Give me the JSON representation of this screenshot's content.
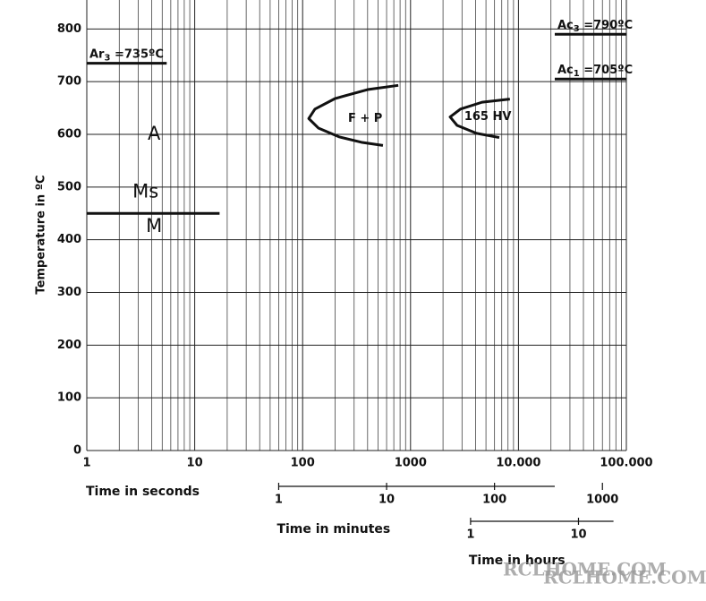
{
  "chart_data": {
    "type": "line",
    "y_label": "Temperature in ºC",
    "xscale": "log",
    "xlim": [
      1,
      100000
    ],
    "ylim": [
      0,
      855
    ],
    "xticks": [
      1,
      10,
      100,
      1000,
      {
        "value": 10000,
        "label": "10.000"
      },
      {
        "value": 100000,
        "label": "100.000"
      }
    ],
    "x_minor_ticks": [
      2,
      3,
      4,
      5,
      6,
      7,
      8,
      9,
      20,
      30,
      40,
      50,
      60,
      70,
      80,
      90,
      200,
      300,
      400,
      500,
      600,
      700,
      800,
      900,
      2000,
      3000,
      4000,
      5000,
      6000,
      7000,
      8000,
      9000,
      20000,
      30000,
      40000,
      50000,
      60000,
      70000,
      80000,
      90000
    ],
    "yticks": [
      0,
      100,
      200,
      300,
      400,
      500,
      600,
      700,
      800
    ],
    "grid": true,
    "x_title": "Time in seconds",
    "secondary_axes": [
      {
        "title": "Time in minutes",
        "xlim": [
          60,
          21700
        ],
        "xticks": [
          {
            "value": 60,
            "label": "1"
          },
          {
            "value": 600,
            "label": "10"
          },
          {
            "value": 6000,
            "label": "100"
          },
          {
            "value": 60000,
            "label": "1000"
          }
        ]
      },
      {
        "title": "Time in hours",
        "xlim": [
          3600,
          76000
        ],
        "xticks": [
          {
            "value": 3600,
            "label": "1"
          },
          {
            "value": 36000,
            "label": "10"
          }
        ]
      }
    ],
    "lines": [
      {
        "color": "#111",
        "x": [
          1,
          5.5
        ],
        "values": [
          735,
          735
        ],
        "label": [
          "Ar",
          "3",
          " =735ºC"
        ]
      },
      {
        "color": "#111",
        "x": [
          21700,
          100000
        ],
        "values": [
          790,
          790
        ],
        "label": [
          "Ac",
          "3",
          " =790ºC"
        ]
      },
      {
        "color": "#111",
        "x": [
          21700,
          100000
        ],
        "values": [
          705,
          705
        ],
        "label": [
          "Ac",
          "1",
          " =705ºC"
        ]
      },
      {
        "color": "#111",
        "x": [
          1,
          17
        ],
        "values": [
          450,
          450
        ]
      },
      {
        "color": "#111",
        "x": [
          770,
          400,
          200,
          130,
          114,
          140,
          220,
          350,
          555
        ],
        "values": [
          693,
          685,
          668,
          648,
          630,
          612,
          595,
          585,
          579
        ]
      },
      {
        "color": "#111",
        "x": [
          8330,
          4600,
          2900,
          2327,
          2700,
          4100,
          6640
        ],
        "values": [
          667,
          661,
          648,
          633,
          617,
          602,
          594
        ]
      }
    ],
    "annotations": [
      {
        "text": "A",
        "x": 4.2,
        "y": 600
      },
      {
        "text": "Ms",
        "x": 3.5,
        "y": 490
      },
      {
        "text": "M",
        "x": 4.2,
        "y": 425
      },
      {
        "text": "F + P",
        "x": 380,
        "y": 630
      },
      {
        "text": "165 HV",
        "x": 5200,
        "y": 633
      }
    ],
    "watermark": [
      "RCLHOME.COM",
      "RCLHOME.COM"
    ]
  }
}
